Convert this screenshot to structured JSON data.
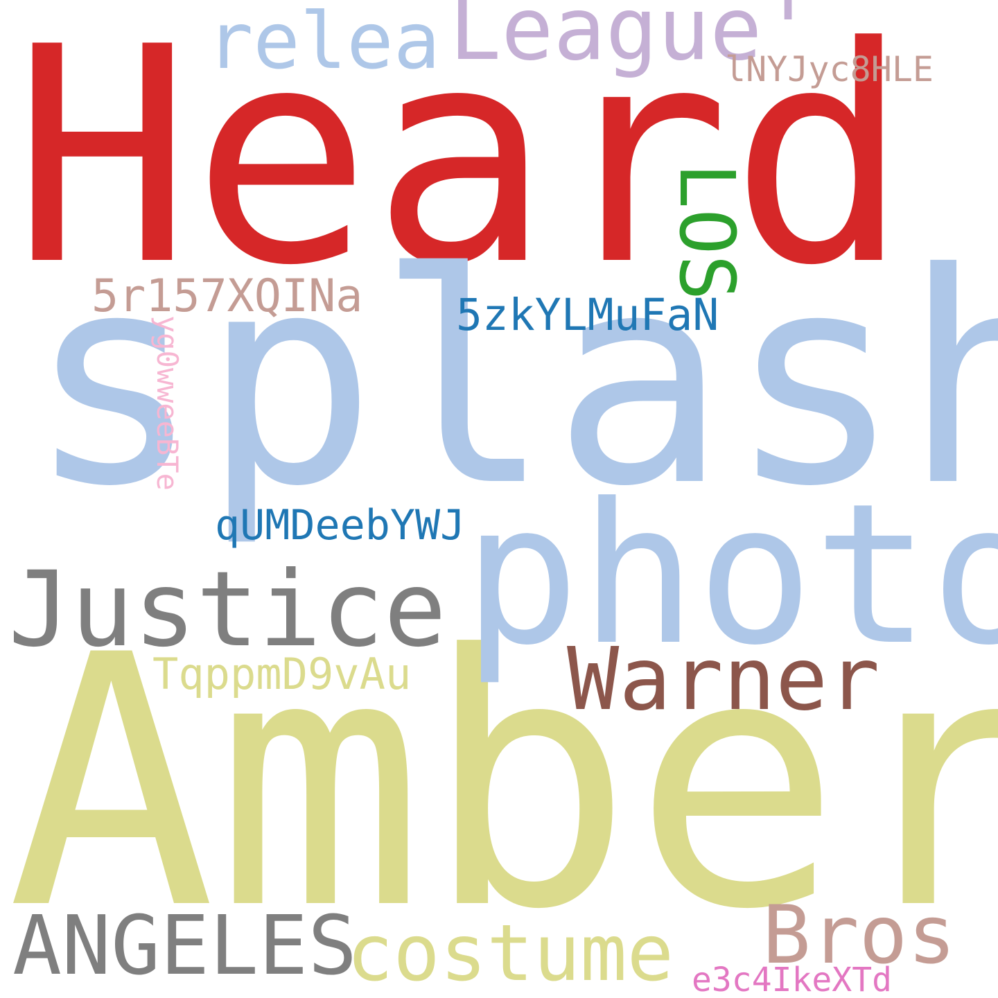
{
  "word_cloud": {
    "background": "#ffffff",
    "words": [
      {
        "id": "heard",
        "text": "Heard",
        "color": "#d62728",
        "orientation": "horizontal"
      },
      {
        "id": "splash",
        "text": "splash",
        "color": "#aec7e8",
        "orientation": "horizontal"
      },
      {
        "id": "amber",
        "text": "Amber",
        "color": "#dbdb8d",
        "orientation": "horizontal"
      },
      {
        "id": "photo",
        "text": "photo",
        "color": "#aec7e8",
        "orientation": "horizontal"
      },
      {
        "id": "justice",
        "text": "Justice",
        "color": "#7f7f7f",
        "orientation": "horizontal"
      },
      {
        "id": "league",
        "text": "League'",
        "color": "#c5b0d5",
        "orientation": "horizontal"
      },
      {
        "id": "relea",
        "text": "relea",
        "color": "#aec7e8",
        "orientation": "horizontal"
      },
      {
        "id": "warner",
        "text": "Warner",
        "color": "#8c564b",
        "orientation": "horizontal"
      },
      {
        "id": "angeles",
        "text": "ANGELES",
        "color": "#7f7f7f",
        "orientation": "horizontal"
      },
      {
        "id": "costume",
        "text": "costume",
        "color": "#dbdb8d",
        "orientation": "horizontal"
      },
      {
        "id": "bros",
        "text": "Bros",
        "color": "#c49c94",
        "orientation": "horizontal"
      },
      {
        "id": "los",
        "text": "LOS",
        "color": "#2ca02c",
        "orientation": "vertical"
      },
      {
        "id": "w5r157",
        "text": "5r157XQINa",
        "color": "#c49c94",
        "orientation": "horizontal"
      },
      {
        "id": "w5zky",
        "text": "5zkYLMuFaN",
        "color": "#1f77b4",
        "orientation": "horizontal"
      },
      {
        "id": "qumd",
        "text": "qUMDeebYWJ",
        "color": "#1f77b4",
        "orientation": "horizontal"
      },
      {
        "id": "tqpp",
        "text": "TqppmD9vAu",
        "color": "#dbdb8d",
        "orientation": "horizontal"
      },
      {
        "id": "lnyj",
        "text": "lNYJyc8HLE",
        "color": "#c49c94",
        "orientation": "horizontal"
      },
      {
        "id": "e3c4",
        "text": "e3c4IkeXTd",
        "color": "#e377c2",
        "orientation": "horizontal"
      },
      {
        "id": "yg0w",
        "text": "yg0wweeBTe",
        "color": "#f7b6d2",
        "orientation": "vertical"
      }
    ]
  }
}
